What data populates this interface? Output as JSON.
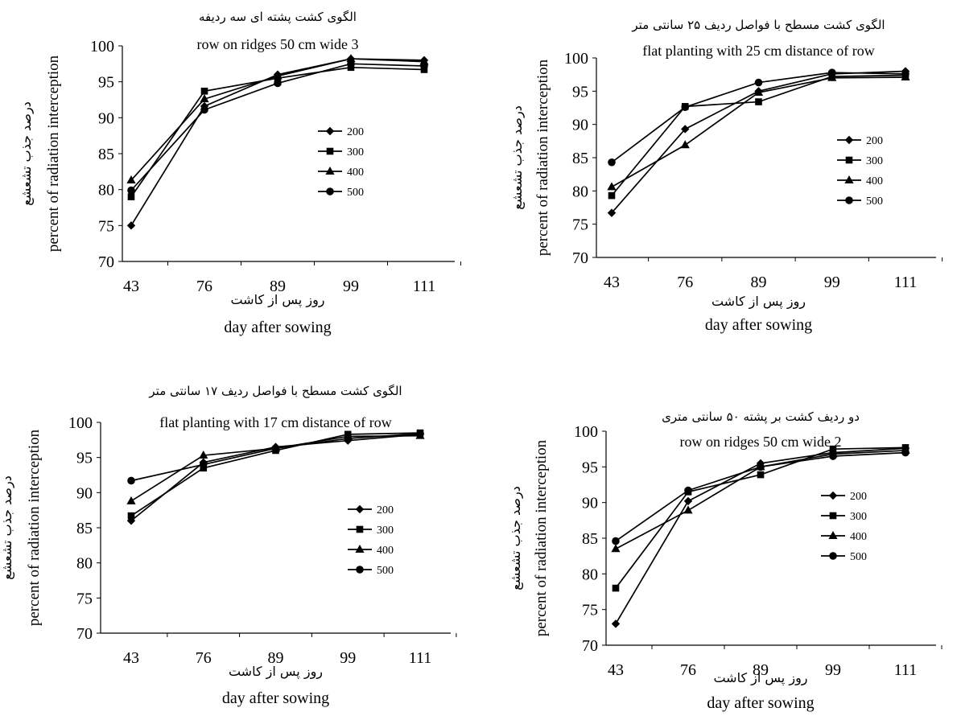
{
  "chart_data": [
    {
      "type": "line",
      "title_fa": "الگوی کشت  پشته ای سه ردیفه",
      "title_en": "row on ridges 50 cm wide 3",
      "ylabel_fa": "درصد جذب تشعشع",
      "ylabel_en": "percent of radiation  interception",
      "xlabel_fa": "روز پس از کاشت",
      "xlabel_en": "day after sowing",
      "categories": [
        "43",
        "76",
        "89",
        "99",
        "111"
      ],
      "ylim": [
        70,
        100
      ],
      "yticks": [
        "70",
        "75",
        "80",
        "85",
        "90",
        "95",
        "100"
      ],
      "legend_position": "right-center",
      "series": [
        {
          "name": "200",
          "marker": "diamond",
          "values": [
            75.0,
            91.6,
            96.0,
            98.2,
            98.0
          ]
        },
        {
          "name": "300",
          "marker": "square",
          "values": [
            79.0,
            93.7,
            95.5,
            97.0,
            96.7
          ]
        },
        {
          "name": "400",
          "marker": "triangle",
          "values": [
            81.3,
            92.6,
            95.8,
            98.2,
            97.8
          ]
        },
        {
          "name": "500",
          "marker": "circle",
          "values": [
            79.9,
            91.1,
            94.8,
            97.5,
            97.2
          ]
        }
      ]
    },
    {
      "type": "line",
      "title_fa": "الگوی کشت مسطح  با فواصل ردیف ۲۵ سانتی متر",
      "title_en": "flat planting with 25 cm distance of row",
      "ylabel_fa": "درصد جذب تشعشع",
      "ylabel_en": "percent of radiation interception",
      "xlabel_fa": "روز پس از کاشت",
      "xlabel_en": "day after sowing",
      "categories": [
        "43",
        "76",
        "89",
        "99",
        "111"
      ],
      "ylim": [
        70,
        100
      ],
      "yticks": [
        "70",
        "75",
        "80",
        "85",
        "90",
        "95",
        "100"
      ],
      "legend_position": "right-center",
      "series": [
        {
          "name": "200",
          "marker": "diamond",
          "values": [
            76.7,
            89.3,
            95.0,
            97.6,
            98.0
          ]
        },
        {
          "name": "300",
          "marker": "square",
          "values": [
            79.3,
            92.7,
            93.4,
            97.2,
            97.4
          ]
        },
        {
          "name": "400",
          "marker": "triangle",
          "values": [
            80.6,
            86.9,
            94.8,
            97.0,
            97.1
          ]
        },
        {
          "name": "500",
          "marker": "circle",
          "values": [
            84.3,
            92.6,
            96.3,
            97.8,
            97.6
          ]
        }
      ]
    },
    {
      "type": "line",
      "title_fa": "الگوی کشت مسطح با فواصل ردیف ۱۷ سانتی متر",
      "title_en": "flat planting with 17 cm distance of row",
      "ylabel_fa": "درصد جذب تشعشع",
      "ylabel_en": "percent of radiation  interception",
      "xlabel_fa": "روز پس از کاشت",
      "xlabel_en": "day after sowing",
      "categories": [
        "43",
        "76",
        "89",
        "99",
        "111"
      ],
      "ylim": [
        70,
        100
      ],
      "yticks": [
        "70",
        "75",
        "80",
        "85",
        "90",
        "95",
        "100"
      ],
      "legend_position": "right-center",
      "series": [
        {
          "name": "200",
          "marker": "diamond",
          "values": [
            86.0,
            94.3,
            96.5,
            97.4,
            98.3
          ]
        },
        {
          "name": "300",
          "marker": "square",
          "values": [
            86.7,
            93.5,
            96.0,
            98.3,
            98.5
          ]
        },
        {
          "name": "400",
          "marker": "triangle",
          "values": [
            88.8,
            95.3,
            96.3,
            98.0,
            98.1
          ]
        },
        {
          "name": "500",
          "marker": "circle",
          "values": [
            91.7,
            94.0,
            96.3,
            97.7,
            98.4
          ]
        }
      ]
    },
    {
      "type": "line",
      "title_fa": "دو ردیف کشت بر پشته ۵۰ سانتی متری",
      "title_en": "row on ridges 50 cm wide 2",
      "ylabel_fa": "درصد جذب تشعشع",
      "ylabel_en": "percent of radiation interception",
      "xlabel_fa": "روز پس از کاشت",
      "xlabel_en": "day after sowing",
      "categories": [
        "43",
        "76",
        "89",
        "99",
        "111"
      ],
      "ylim": [
        70,
        100
      ],
      "yticks": [
        "70",
        "75",
        "80",
        "85",
        "90",
        "95",
        "100"
      ],
      "legend_position": "right-center",
      "series": [
        {
          "name": "200",
          "marker": "diamond",
          "values": [
            73.0,
            90.2,
            95.5,
            97.0,
            97.6
          ]
        },
        {
          "name": "300",
          "marker": "square",
          "values": [
            78.0,
            91.5,
            93.9,
            97.5,
            97.7
          ]
        },
        {
          "name": "400",
          "marker": "triangle",
          "values": [
            83.5,
            88.9,
            95.0,
            96.8,
            97.3
          ]
        },
        {
          "name": "500",
          "marker": "circle",
          "values": [
            84.6,
            91.7,
            95.0,
            96.5,
            97.0
          ]
        }
      ]
    }
  ]
}
